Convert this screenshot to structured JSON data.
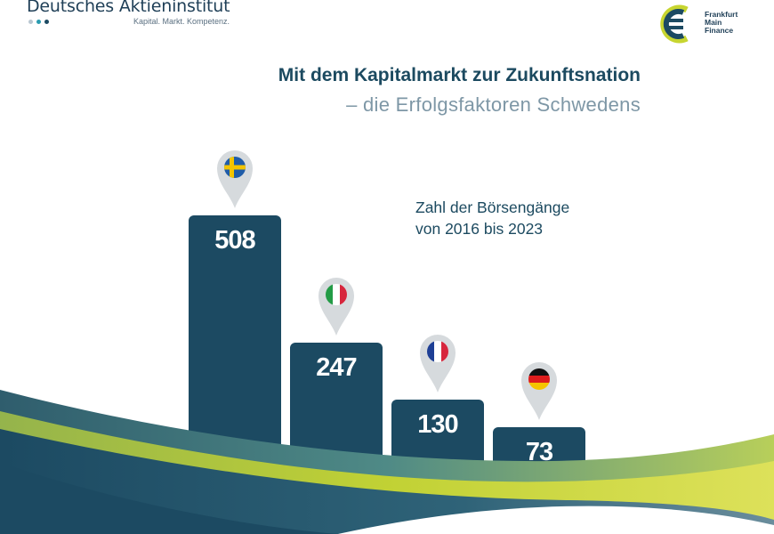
{
  "header": {
    "org_name": "Deutsches Aktieninstitut",
    "org_tagline": "Kapital. Markt. Kompetenz.",
    "org_dot_colors": [
      "#b9c7d1",
      "#2a9bb0",
      "#1c4a62"
    ],
    "partner_lines": [
      "Frankfurt",
      "Main",
      "Finance"
    ],
    "partner_icon": "euro-circle-icon"
  },
  "chart_data": {
    "type": "bar",
    "title": "Mit dem Kapitalmarkt zur Zukunftsnation",
    "subtitle": "– die Erfolgsfaktoren Schwedens",
    "caption": [
      "Zahl der Börsengänge",
      "von 2016 bis 2023"
    ],
    "categories": [
      "Schweden",
      "Italien",
      "Frankreich",
      "Deutschland"
    ],
    "values": [
      508,
      247,
      130,
      73
    ],
    "value_labels": [
      "508",
      "247",
      "130",
      "73"
    ],
    "flags": [
      "sweden-flag-icon",
      "italy-flag-icon",
      "france-flag-icon",
      "germany-flag-icon"
    ],
    "bar_color": "#1c4a62",
    "xlabel": "",
    "ylabel": ""
  },
  "colors": {
    "primary": "#1c4a62",
    "muted": "#7e97a6",
    "accent_green": "#c7d530",
    "accent_teal": "#4f8a86",
    "pin_grey": "#d6dadd"
  }
}
